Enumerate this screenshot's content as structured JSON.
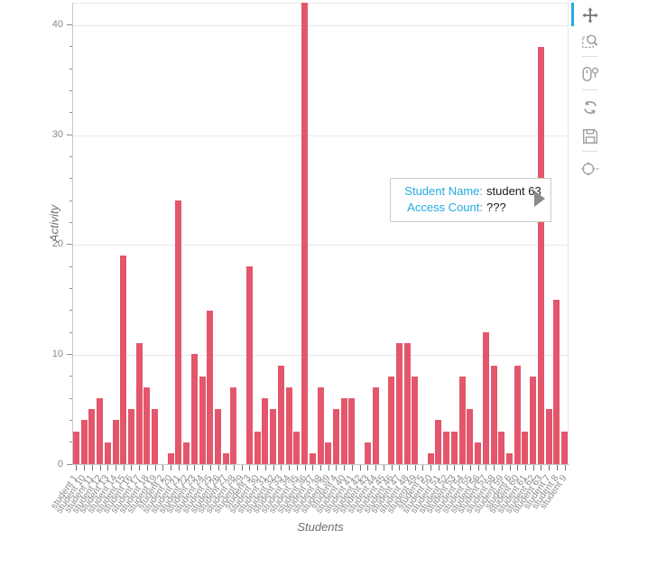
{
  "chart_data": {
    "type": "bar",
    "title": "",
    "xlabel": "Students",
    "ylabel": "Activity",
    "ylim": [
      0,
      42
    ],
    "yticks": [
      0,
      10,
      20,
      30,
      40
    ],
    "grid": "horizontal",
    "legend": "none",
    "categories": [
      "student 1",
      "student 10",
      "student 11",
      "student 12",
      "student 13",
      "student 14",
      "student 15",
      "student 16",
      "student 17",
      "student 18",
      "student 19",
      "student 2",
      "student 20",
      "student 21",
      "student 22",
      "student 23",
      "student 24",
      "student 25",
      "student 26",
      "student 27",
      "student 28",
      "student 29",
      "student 3",
      "student 30",
      "student 31",
      "student 32",
      "student 33",
      "student 34",
      "student 35",
      "student 36",
      "student 37",
      "student 38",
      "student 39",
      "student 4",
      "student 40",
      "student 41",
      "student 42",
      "student 43",
      "student 44",
      "student 45",
      "student 46",
      "student 47",
      "student 48",
      "student 49",
      "student 5",
      "student 50",
      "student 51",
      "student 52",
      "student 53",
      "student 54",
      "student 55",
      "student 56",
      "student 57",
      "student 58",
      "student 59",
      "student 6",
      "student 60",
      "student 61",
      "student 62",
      "student 63",
      "student 7",
      "student 8",
      "student 9"
    ],
    "values": [
      3,
      4,
      5,
      6,
      2,
      4,
      19,
      5,
      11,
      7,
      5,
      0,
      1,
      24,
      2,
      10,
      8,
      14,
      5,
      1,
      7,
      0,
      18,
      3,
      6,
      5,
      9,
      7,
      3,
      42,
      1,
      7,
      2,
      5,
      6,
      6,
      0,
      2,
      7,
      0,
      8,
      11,
      11,
      8,
      0,
      1,
      4,
      3,
      3,
      8,
      5,
      2,
      12,
      9,
      3,
      1,
      9,
      3,
      8,
      38,
      5,
      15,
      3
    ],
    "hovered_category": "student 63"
  },
  "tooltip": {
    "rows": [
      {
        "label": "Student Name:",
        "value": "student 63"
      },
      {
        "label": "Access Count:",
        "value": "???"
      }
    ]
  },
  "toolbar": {
    "tools": [
      "pan",
      "box-zoom",
      "wheel-zoom",
      "reset",
      "save",
      "hover"
    ],
    "active_tool": "pan"
  },
  "colors": {
    "bar": "#e4566b",
    "accent": "#26aae1"
  }
}
